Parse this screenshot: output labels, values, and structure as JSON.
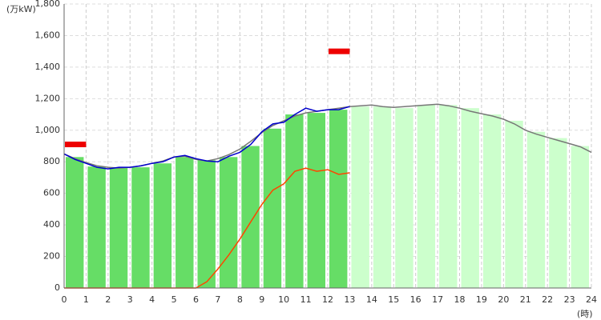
{
  "chart_data": {
    "type": "bar-line",
    "y_label": "(万kW)",
    "x_label": "(時)",
    "xlim": [
      0,
      24
    ],
    "xticks": [
      0,
      1,
      2,
      3,
      4,
      5,
      6,
      7,
      8,
      9,
      10,
      11,
      12,
      13,
      14,
      15,
      16,
      17,
      18,
      19,
      20,
      21,
      22,
      23,
      24
    ],
    "ylim": [
      0,
      1800
    ],
    "yticks": [
      0,
      200,
      400,
      600,
      800,
      {
        "value": 1000,
        "label": "1,000"
      },
      {
        "value": 1200,
        "label": "1,200"
      },
      {
        "value": 1400,
        "label": "1,400"
      },
      {
        "value": 1600,
        "label": "1,600"
      },
      {
        "value": 1800,
        "label": "1,800"
      }
    ],
    "grid": true,
    "bars": {
      "x": [
        0,
        1,
        2,
        3,
        4,
        5,
        6,
        7,
        8,
        9,
        10,
        11,
        12,
        13,
        14,
        15,
        16,
        17,
        18,
        19,
        20,
        21,
        22,
        23
      ],
      "values": [
        830,
        770,
        760,
        765,
        790,
        830,
        810,
        830,
        900,
        1010,
        1100,
        1110,
        1130,
        1150,
        1150,
        1140,
        1160,
        1160,
        1140,
        1100,
        1060,
        990,
        950,
        900
      ],
      "colors": [
        "#66dd66",
        "#66dd66",
        "#66dd66",
        "#66dd66",
        "#66dd66",
        "#66dd66",
        "#66dd66",
        "#66dd66",
        "#66dd66",
        "#66dd66",
        "#66dd66",
        "#66dd66",
        "#66dd66",
        "#ccffcc",
        "#ccffcc",
        "#ccffcc",
        "#ccffcc",
        "#ccffcc",
        "#ccffcc",
        "#ccffcc",
        "#ccffcc",
        "#ccffcc",
        "#ccffcc",
        "#ccffcc"
      ]
    },
    "markers": {
      "x": [
        0,
        12
      ],
      "values": [
        910,
        1500
      ],
      "color": "#ee0000"
    },
    "series": [
      {
        "color": "#777777",
        "x": [
          0,
          0.5,
          1,
          1.5,
          2,
          2.5,
          3,
          3.5,
          4,
          4.5,
          5,
          5.5,
          6,
          6.5,
          7,
          7.5,
          8,
          8.5,
          9,
          9.5,
          10,
          10.5,
          11,
          11.5,
          12,
          12.5,
          13,
          13.5,
          14,
          14.5,
          15,
          15.5,
          16,
          16.5,
          17,
          17.5,
          18,
          18.5,
          19,
          19.5,
          20,
          20.5,
          21,
          21.5,
          22,
          22.5,
          23,
          23.5,
          24
        ],
        "values": [
          850,
          820,
          795,
          775,
          765,
          760,
          765,
          775,
          790,
          805,
          830,
          835,
          815,
          805,
          820,
          845,
          880,
          930,
          985,
          1030,
          1060,
          1090,
          1110,
          1120,
          1130,
          1140,
          1150,
          1155,
          1160,
          1150,
          1145,
          1150,
          1155,
          1160,
          1165,
          1155,
          1140,
          1120,
          1105,
          1090,
          1070,
          1040,
          1000,
          975,
          955,
          935,
          915,
          895,
          860
        ]
      },
      {
        "color": "#0000cc",
        "x": [
          0,
          0.5,
          1,
          1.5,
          2,
          2.5,
          3,
          3.5,
          4,
          4.5,
          5,
          5.5,
          6,
          6.5,
          7,
          7.5,
          8,
          8.5,
          9,
          9.5,
          10,
          10.5,
          11,
          11.5,
          12,
          12.5,
          13
        ],
        "values": [
          850,
          815,
          790,
          765,
          755,
          765,
          765,
          775,
          790,
          800,
          830,
          840,
          820,
          805,
          800,
          835,
          860,
          910,
          990,
          1040,
          1050,
          1100,
          1140,
          1120,
          1130,
          1130,
          1150
        ]
      },
      {
        "color": "#ff4500",
        "x": [
          0,
          0.5,
          1,
          1.5,
          2,
          2.5,
          3,
          3.5,
          4,
          4.5,
          5,
          5.5,
          6,
          6.5,
          7,
          7.5,
          8,
          8.5,
          9,
          9.5,
          10,
          10.5,
          11,
          11.5,
          12,
          12.5,
          13
        ],
        "values": [
          0,
          0,
          0,
          0,
          0,
          0,
          0,
          0,
          0,
          0,
          0,
          0,
          0,
          40,
          120,
          210,
          310,
          420,
          530,
          620,
          660,
          740,
          760,
          740,
          750,
          720,
          730
        ]
      }
    ]
  }
}
